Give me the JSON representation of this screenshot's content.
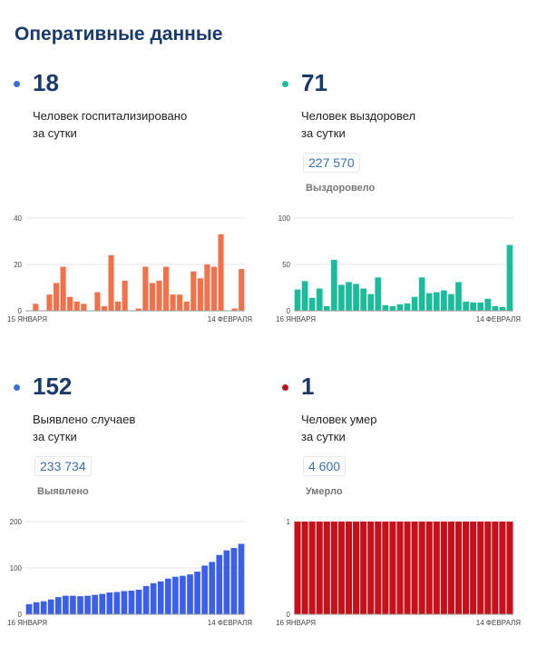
{
  "page": {
    "title": "Оперативные данные"
  },
  "panels": [
    {
      "value": "18",
      "caption1": "Человек госпитализировано",
      "caption2": "за сутки",
      "dot_color": "#3b6fe0"
    },
    {
      "value": "71",
      "caption1": "Человек выздоровел",
      "caption2": "за сутки",
      "total": "227 570",
      "total_label": "Выздоровело",
      "dot_color": "#1abc9c"
    },
    {
      "value": "152",
      "caption1": "Выявлено случаев",
      "caption2": "за сутки",
      "total": "233 734",
      "total_label": "Выявлено",
      "dot_color": "#3b6fe0"
    },
    {
      "value": "1",
      "caption1": "Человек умер",
      "caption2": "за сутки",
      "total": "4 600",
      "total_label": "Умерло",
      "dot_color": "#b7141c"
    }
  ],
  "chart_data": [
    {
      "type": "bar",
      "x_start_label": "15 ЯНВАРЯ",
      "x_end_label": "14 ФЕВРАЛЯ",
      "ylim": [
        0,
        40
      ],
      "yticks": [
        0,
        20,
        40
      ],
      "color": "#f2714a",
      "values": [
        0,
        3,
        0,
        7,
        12,
        19,
        6,
        4,
        3,
        0,
        8,
        2,
        24,
        4,
        13,
        0,
        1,
        19,
        12,
        13,
        19,
        7,
        7,
        4,
        17,
        14,
        20,
        19,
        33,
        0,
        1,
        18
      ]
    },
    {
      "type": "bar",
      "x_start_label": "16 ЯНВАРЯ",
      "x_end_label": "14 ФЕВРАЛЯ",
      "ylim": [
        0,
        100
      ],
      "yticks": [
        0,
        50,
        100
      ],
      "color": "#1abc9c",
      "values": [
        23,
        32,
        14,
        24,
        5,
        55,
        28,
        31,
        29,
        24,
        18,
        36,
        6,
        5,
        7,
        8,
        15,
        36,
        19,
        20,
        22,
        18,
        31,
        10,
        9,
        9,
        13,
        5,
        4,
        71
      ]
    },
    {
      "type": "bar",
      "x_start_label": "16 ЯНВАРЯ",
      "x_end_label": "14 ФЕВРАЛЯ",
      "ylim": [
        0,
        200
      ],
      "yticks": [
        0,
        100,
        200
      ],
      "color": "#3b5fe8",
      "values": [
        22,
        26,
        28,
        32,
        37,
        40,
        40,
        39,
        40,
        42,
        44,
        47,
        48,
        50,
        51,
        53,
        61,
        67,
        71,
        77,
        81,
        83,
        86,
        92,
        105,
        113,
        128,
        138,
        143,
        152
      ]
    },
    {
      "type": "bar",
      "x_start_label": "16 ЯНВАРЯ",
      "x_end_label": "14 ФЕВРАЛЯ",
      "ylim": [
        0,
        1
      ],
      "yticks": [
        0,
        1
      ],
      "color": "#c8101a",
      "values": [
        1,
        1,
        1,
        1,
        1,
        1,
        1,
        1,
        1,
        1,
        1,
        1,
        1,
        1,
        1,
        1,
        1,
        1,
        1,
        1,
        1,
        1,
        1,
        1,
        1,
        1,
        1,
        1,
        1,
        1
      ]
    }
  ]
}
